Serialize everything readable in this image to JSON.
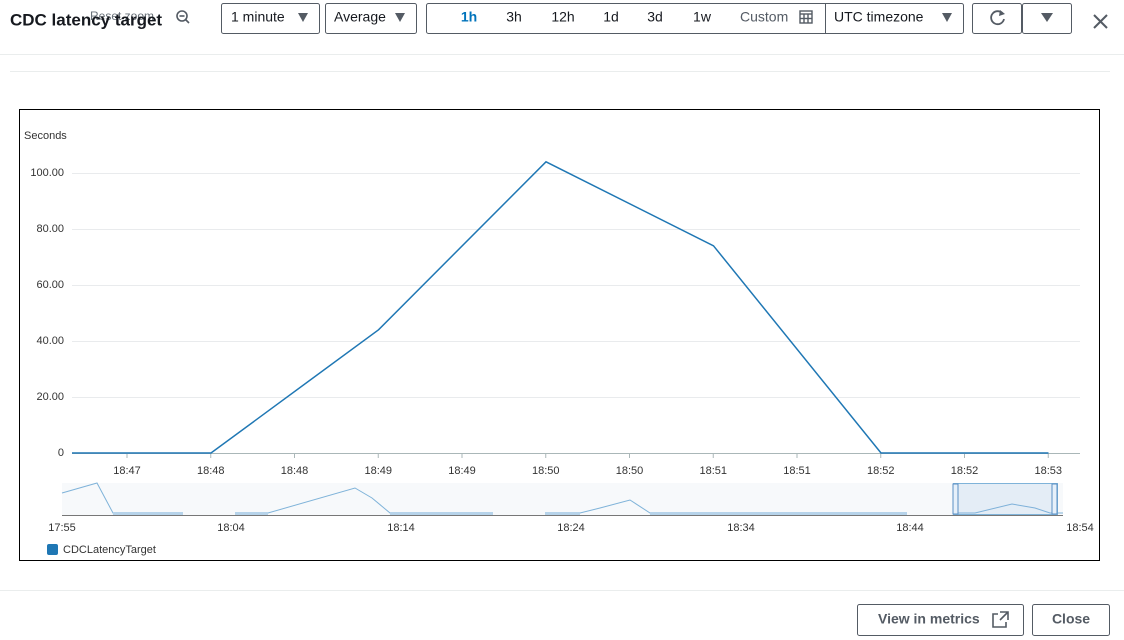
{
  "header": {
    "title": "CDC latency target",
    "reset_zoom": "Reset zoom",
    "period": "1 minute",
    "statistic": "Average",
    "ranges": [
      "1h",
      "3h",
      "12h",
      "1d",
      "3d",
      "1w"
    ],
    "custom": "Custom",
    "timezone": "UTC timezone"
  },
  "chart_data": {
    "type": "line",
    "y_label": "Seconds",
    "x": [
      "18:47",
      "18:48",
      "18:49",
      "18:50",
      "18:51",
      "18:52",
      "18:53"
    ],
    "series": [
      {
        "name": "CDCLatencyTarget",
        "color": "#1f77b4",
        "values": [
          0,
          0,
          44,
          104,
          74,
          0,
          0
        ]
      }
    ],
    "xticks": [
      "18:47",
      "18:48",
      "18:48",
      "18:49",
      "18:49",
      "18:50",
      "18:50",
      "18:51",
      "18:51",
      "18:52",
      "18:52",
      "18:53"
    ],
    "ylim": [
      0,
      110
    ],
    "yticks": [
      0,
      {
        "value": 20,
        "label": "20.00"
      },
      {
        "value": 40,
        "label": "40.00"
      },
      {
        "value": 60,
        "label": "60.00"
      },
      {
        "value": 80,
        "label": "80.00"
      },
      {
        "value": 100,
        "label": "100.00"
      }
    ],
    "grid": true
  },
  "navigator": {
    "labels": [
      "17:55",
      "18:04",
      "18:14",
      "18:24",
      "18:34",
      "18:44",
      "18:54"
    ]
  },
  "footer": {
    "view_in_metrics": "View in metrics",
    "close": "Close"
  }
}
